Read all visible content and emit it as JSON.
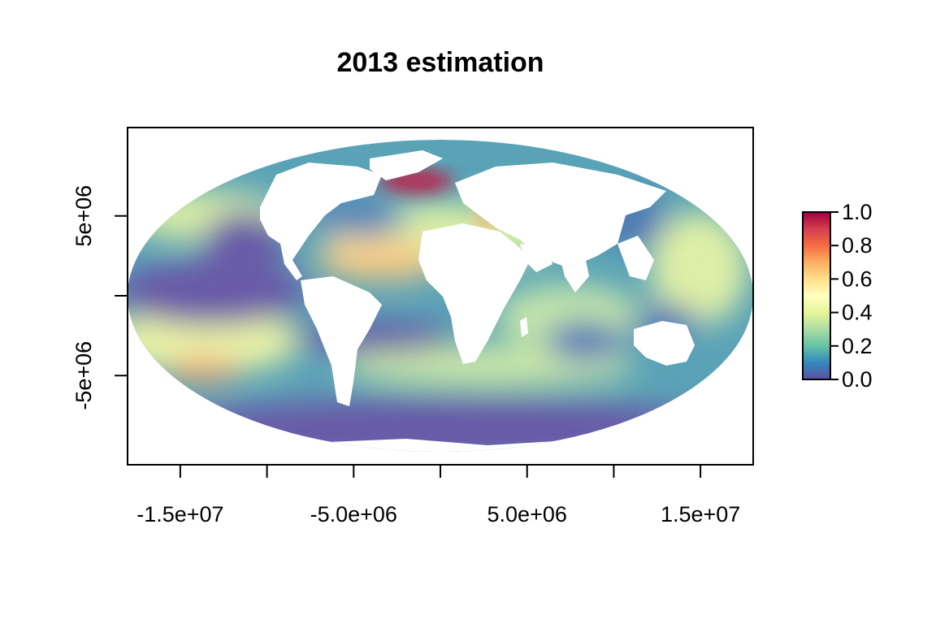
{
  "map": {
    "title": "2013 estimation",
    "projection": "Mollweide",
    "x_axis": {
      "range": [
        -18040095,
        18040095
      ],
      "ticks": [
        -15000000,
        -10000000,
        -5000000,
        0,
        5000000,
        10000000,
        15000000
      ],
      "labels": [
        {
          "value": -15000000,
          "text": "-1.5e+07"
        },
        {
          "value": -5000000,
          "text": "-5.0e+06"
        },
        {
          "value": 5000000,
          "text": "5.0e+06"
        },
        {
          "value": 15000000,
          "text": "1.5e+07"
        }
      ]
    },
    "y_axis": {
      "range": [
        -9770000,
        9770000
      ],
      "ticks": [
        -5000000,
        0,
        5000000
      ],
      "labels": [
        {
          "value": 5000000,
          "text": "5e+06"
        },
        {
          "value": -5000000,
          "text": "-5e+06"
        }
      ]
    },
    "legend": {
      "placement": "right",
      "range": [
        0,
        1
      ],
      "labels": [
        "1.0",
        "0.8",
        "0.6",
        "0.4",
        "0.2",
        "0.0"
      ],
      "colors": [
        "#5E4FA2",
        "#3288BD",
        "#66C2A5",
        "#ABDDA4",
        "#E6F598",
        "#FFFFBF",
        "#FEE08B",
        "#FDAE61",
        "#F46D43",
        "#D53E4F",
        "#9E0142"
      ]
    },
    "colors": {
      "ocean_low": "#5E4FA2",
      "land": "#ffffff",
      "frame": "#000000"
    }
  }
}
